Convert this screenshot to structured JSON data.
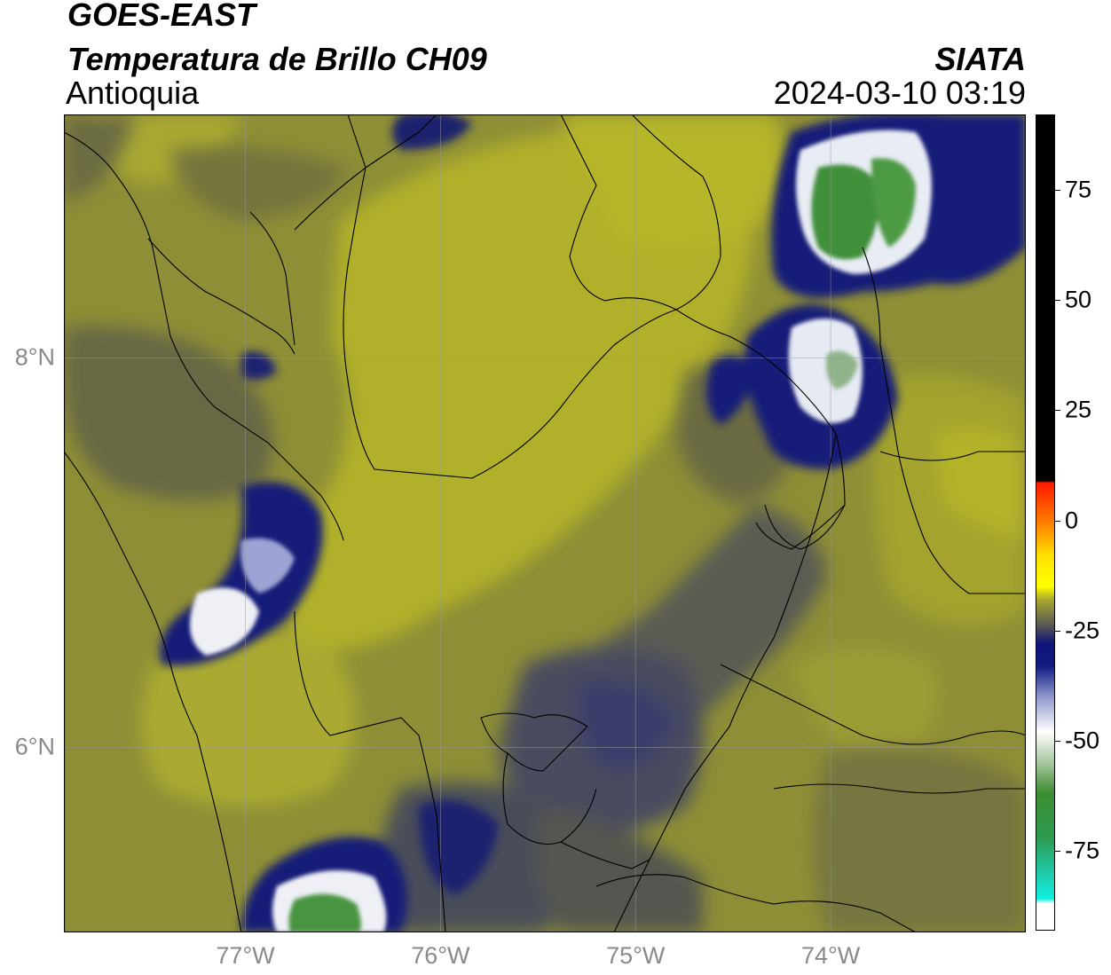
{
  "header": {
    "satellite": "GOES-EAST",
    "product": "Temperatura de Brillo CH09",
    "region": "Antioquia",
    "organization": "SIATA",
    "timestamp": "2024-03-10 03:19"
  },
  "map": {
    "lon_range": [
      -77.93,
      -73.0
    ],
    "lat_range": [
      5.05,
      9.25
    ],
    "x_ticks": [
      {
        "value": -77,
        "label": "77°W"
      },
      {
        "value": -76,
        "label": "76°W"
      },
      {
        "value": -75,
        "label": "75°W"
      },
      {
        "value": -74,
        "label": "74°W"
      }
    ],
    "y_ticks": [
      {
        "value": 8,
        "label": "8°N"
      },
      {
        "value": 6,
        "label": "6°N"
      }
    ],
    "gridlines": true,
    "palette": {
      "warm_yellow": "#b4b42a",
      "olive": "#8f8f38",
      "dark_olive": "#6e6e3c",
      "gray_blue": "#4c4f5a",
      "navy": "#1a1f72",
      "white": "#ffffff",
      "green": "#3c8c36"
    }
  },
  "colorbar": {
    "min": -93,
    "max": 92,
    "ticks": [
      {
        "value": 75,
        "label": "75"
      },
      {
        "value": 50,
        "label": "50"
      },
      {
        "value": 25,
        "label": "25"
      },
      {
        "value": 0,
        "label": "0"
      },
      {
        "value": -25,
        "label": "-25"
      },
      {
        "value": -50,
        "label": "-50"
      },
      {
        "value": -75,
        "label": "-75"
      }
    ]
  }
}
